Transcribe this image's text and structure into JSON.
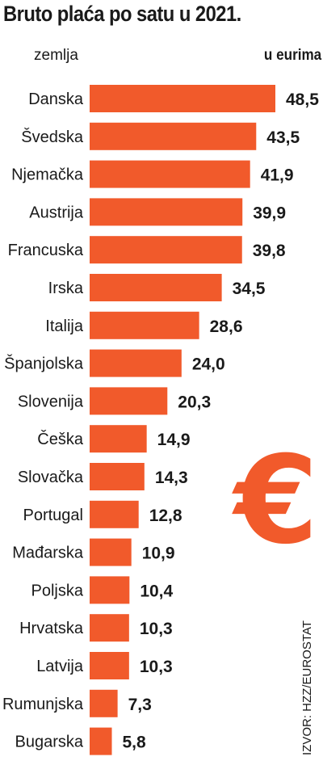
{
  "header": {
    "title": "Bruto plaća po satu u 2021.",
    "country_col": "zemlja",
    "unit_col": "u eurima"
  },
  "decor": {
    "symbol": "€",
    "color": "#f15a2b"
  },
  "source": "IZVOR: HZZ/EUROSTAT",
  "chart_data": {
    "type": "bar",
    "orientation": "horizontal",
    "title": "Bruto plaća po satu u 2021.",
    "categories": [
      "Danska",
      "Švedska",
      "Njemačka",
      "Austrija",
      "Francuska",
      "Irska",
      "Italija",
      "Španjolska",
      "Slovenija",
      "Češka",
      "Slovačka",
      "Portugal",
      "Mađarska",
      "Poljska",
      "Hrvatska",
      "Latvija",
      "Rumunjska",
      "Bugarska"
    ],
    "values": [
      48.5,
      43.5,
      41.9,
      39.9,
      39.8,
      34.5,
      28.6,
      24.0,
      20.3,
      14.9,
      14.3,
      12.8,
      10.9,
      10.4,
      10.3,
      10.3,
      7.3,
      5.8
    ],
    "value_labels": [
      "48,5",
      "43,5",
      "41,9",
      "39,9",
      "39,8",
      "34,5",
      "28,6",
      "24,0",
      "20,3",
      "14,9",
      "14,3",
      "12,8",
      "10,9",
      "10,4",
      "10,3",
      "10,3",
      "7,3",
      "5,8"
    ],
    "bar_color": "#f15a2b",
    "grid": false
  }
}
